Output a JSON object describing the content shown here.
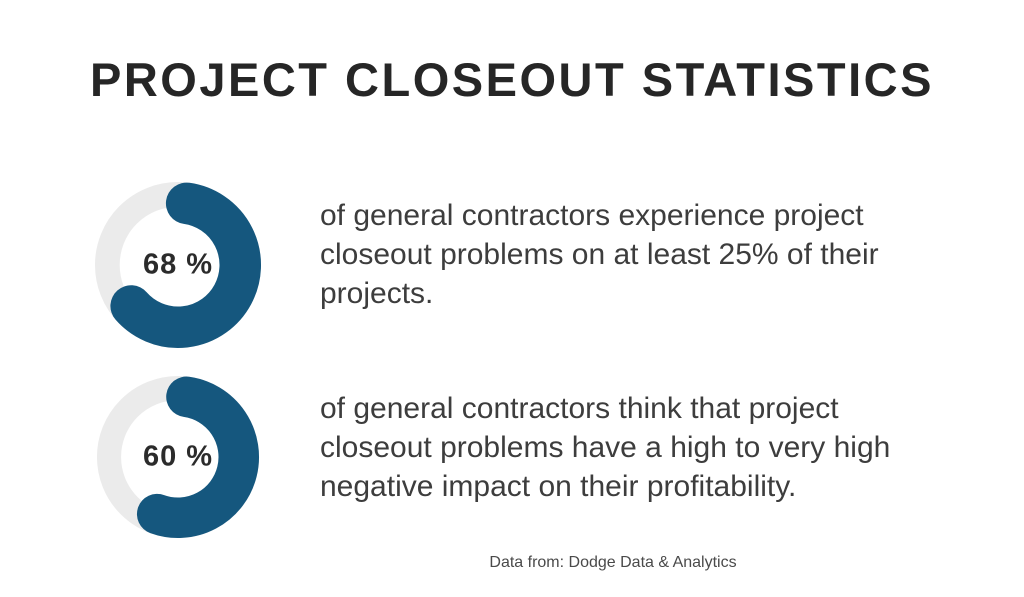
{
  "title": "PROJECT CLOSEOUT STATISTICS",
  "footer": {
    "source": "Data from: Dodge Data & Analytics"
  },
  "colors": {
    "accent_blue": "#15577e",
    "track_gray": "#ebebeb",
    "title_text": "#262626",
    "body_text": "#3d3d3d",
    "footer_text": "#4a4a4a",
    "percent_label_text": "#2b2b2b",
    "background": "#ffffff"
  },
  "chart_data": [
    {
      "type": "pie",
      "variant": "donut-progress",
      "percent": 68,
      "values": [
        68,
        32
      ],
      "label": "68 %",
      "legend": "none",
      "description": "of general contractors experience project\ncloseout problems on at least 25% of their\nprojects."
    },
    {
      "type": "pie",
      "variant": "donut-progress",
      "percent": 60,
      "values": [
        60,
        40
      ],
      "label": "60 %",
      "legend": "none",
      "description": "of general contractors think that project\ncloseout problems have a high to very high\nnegative impact on their profitability."
    }
  ]
}
